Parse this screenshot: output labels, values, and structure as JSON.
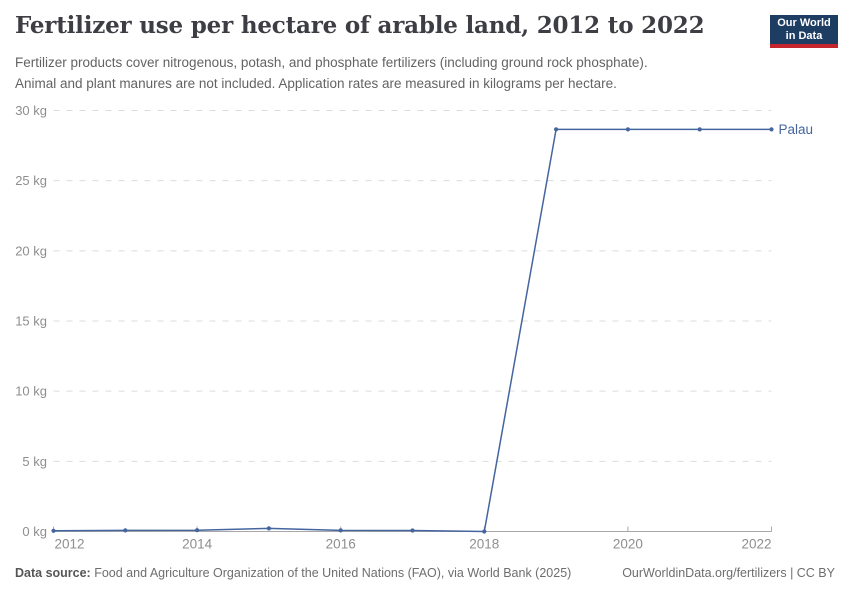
{
  "header": {
    "title": "Fertilizer use per hectare of arable land, 2012 to 2022",
    "subtitle_lines": [
      "Fertilizer products cover nitrogenous, potash, and phosphate fertilizers (including ground rock phosphate).",
      "Animal and plant manures are not included. Application rates are measured in kilograms per hectare."
    ],
    "logo": {
      "line1": "Our World",
      "line2": "in Data",
      "bg_color": "#1d3d63",
      "accent_color": "#c5262e"
    }
  },
  "chart_data": {
    "type": "line",
    "title": "Fertilizer use per hectare of arable land, 2012 to 2022",
    "x": [
      2012,
      2013,
      2014,
      2015,
      2016,
      2017,
      2018,
      2019,
      2020,
      2021,
      2022
    ],
    "series": [
      {
        "name": "Palau",
        "color": "#44659e",
        "values": [
          0.05,
          0.08,
          0.09,
          0.22,
          0.08,
          0.07,
          0,
          28.65,
          28.65,
          28.65,
          28.65
        ]
      }
    ],
    "xlim": [
      2012,
      2022
    ],
    "ylim": [
      0,
      30
    ],
    "x_ticks": [
      2012,
      2014,
      2016,
      2018,
      2020,
      2022
    ],
    "y_ticks": [
      0,
      5,
      10,
      15,
      20,
      25,
      30
    ],
    "y_tick_suffix": " kg",
    "grid": "horizontal-dashed",
    "legend": "series-end-label",
    "xlabel": "",
    "ylabel": "kilograms per hectare"
  },
  "colors": {
    "line": "#44659e",
    "axis": "#a8a8a8",
    "grid": "#dcdcdc",
    "tick_label": "#8e8e8e"
  },
  "footer": {
    "data_source_label": "Data source:",
    "data_source_text": "Food and Agriculture Organization of the United Nations (FAO), via World Bank (2025)",
    "credit": "OurWorldinData.org/fertilizers | CC BY"
  }
}
